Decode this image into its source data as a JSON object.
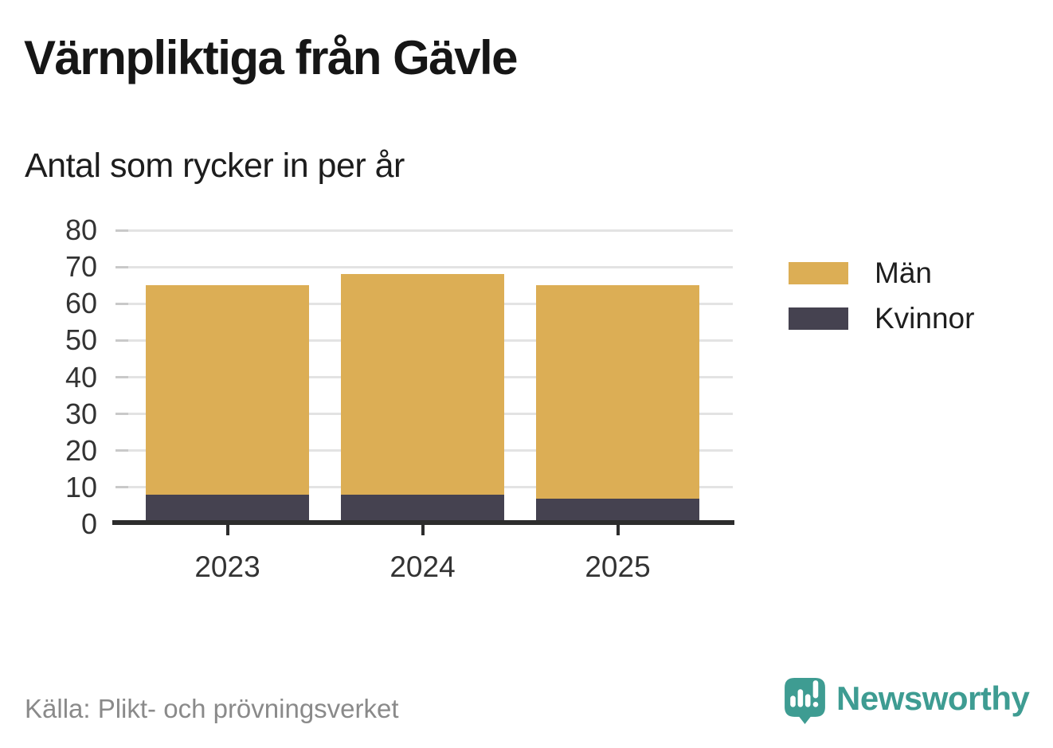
{
  "header": {
    "title": "Värnpliktiga från Gävle",
    "subtitle": "Antal som rycker in per år"
  },
  "footer": {
    "source": "Källa: Plikt- och prövningsverket",
    "brand": "Newsworthy"
  },
  "colors": {
    "men": "#DCAE55",
    "women": "#454250",
    "grid": "#E3E3E3",
    "axis": "#2D2D2D",
    "tick_label": "#333333",
    "source_text": "#8A8A8A",
    "brand_teal": "#3E9C92"
  },
  "chart_data": {
    "type": "bar",
    "stacked": true,
    "title": "Värnpliktiga från Gävle",
    "subtitle": "Antal som rycker in per år",
    "categories": [
      "2023",
      "2024",
      "2025"
    ],
    "series": [
      {
        "name": "Män",
        "color": "#DCAE55",
        "values": [
          57,
          60,
          58
        ]
      },
      {
        "name": "Kvinnor",
        "color": "#454250",
        "values": [
          8,
          8,
          7
        ]
      }
    ],
    "stack_totals": [
      65,
      68,
      65
    ],
    "stacking_order_bottom_to_top": [
      "Kvinnor",
      "Män"
    ],
    "xlabel": "",
    "ylabel": "",
    "ylim": [
      0,
      80
    ],
    "yticks": [
      0,
      10,
      20,
      30,
      40,
      50,
      60,
      70,
      80
    ],
    "grid": true,
    "legend_position": "right"
  }
}
